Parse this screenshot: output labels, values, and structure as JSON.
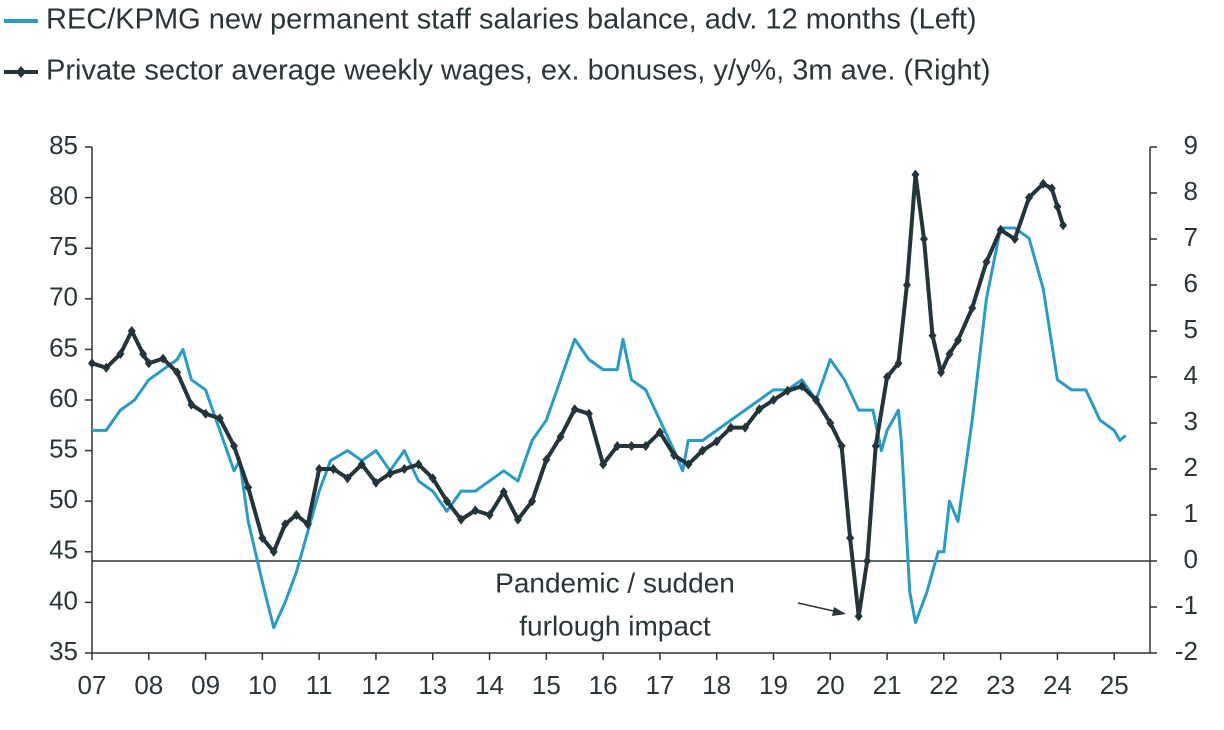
{
  "chart_data": {
    "type": "line",
    "legend_position": "top-left",
    "xlim": [
      2007,
      2025.63
    ],
    "xticks": [
      {
        "value": 2007,
        "label": "07"
      },
      {
        "value": 2008,
        "label": "08"
      },
      {
        "value": 2009,
        "label": "09"
      },
      {
        "value": 2010,
        "label": "10"
      },
      {
        "value": 2011,
        "label": "11"
      },
      {
        "value": 2012,
        "label": "12"
      },
      {
        "value": 2013,
        "label": "13"
      },
      {
        "value": 2014,
        "label": "14"
      },
      {
        "value": 2015,
        "label": "15"
      },
      {
        "value": 2016,
        "label": "16"
      },
      {
        "value": 2017,
        "label": "17"
      },
      {
        "value": 2018,
        "label": "18"
      },
      {
        "value": 2019,
        "label": "19"
      },
      {
        "value": 2020,
        "label": "20"
      },
      {
        "value": 2021,
        "label": "21"
      },
      {
        "value": 2022,
        "label": "22"
      },
      {
        "value": 2023,
        "label": "23"
      },
      {
        "value": 2024,
        "label": "24"
      },
      {
        "value": 2025,
        "label": "25"
      }
    ],
    "ylim": [
      35,
      85
    ],
    "yticks": [
      35,
      40,
      45,
      50,
      55,
      60,
      65,
      70,
      75,
      80,
      85
    ],
    "y2lim": [
      -2,
      9
    ],
    "y2ticks": [
      -2,
      -1,
      0,
      1,
      2,
      3,
      4,
      5,
      6,
      7,
      8,
      9
    ],
    "reference_line": {
      "value": 0,
      "axis": "y2"
    },
    "annotation": [
      "Pandemic / sudden",
      "furlough impact"
    ],
    "series": [
      {
        "name": "REC/KPMG new permanent staff salaries balance, adv. 12 months (Left)",
        "color": "#2a9bc4",
        "axis": "y",
        "markers": false,
        "x": [
          2007.0,
          2007.25,
          2007.5,
          2007.75,
          2008.0,
          2008.25,
          2008.5,
          2008.6,
          2008.75,
          2009.0,
          2009.25,
          2009.5,
          2009.6,
          2009.75,
          2010.0,
          2010.2,
          2010.4,
          2010.6,
          2010.8,
          2011.0,
          2011.2,
          2011.5,
          2011.75,
          2012.0,
          2012.25,
          2012.5,
          2012.75,
          2013.0,
          2013.25,
          2013.5,
          2013.75,
          2014.0,
          2014.25,
          2014.5,
          2014.75,
          2015.0,
          2015.25,
          2015.5,
          2015.75,
          2016.0,
          2016.25,
          2016.35,
          2016.5,
          2016.75,
          2017.0,
          2017.25,
          2017.4,
          2017.5,
          2017.75,
          2018.0,
          2018.25,
          2018.5,
          2018.75,
          2019.0,
          2019.25,
          2019.5,
          2019.75,
          2020.0,
          2020.25,
          2020.5,
          2020.75,
          2020.9,
          2021.0,
          2021.2,
          2021.25,
          2021.4,
          2021.5,
          2021.7,
          2021.9,
          2022.0,
          2022.1,
          2022.25,
          2022.5,
          2022.75,
          2023.0,
          2023.25,
          2023.5,
          2023.75,
          2024.0,
          2024.25,
          2024.5,
          2024.75,
          2025.0,
          2025.1,
          2025.2
        ],
        "values": [
          57,
          57,
          59,
          60,
          62,
          63,
          64,
          65,
          62,
          61,
          57,
          53,
          54,
          48,
          42,
          37.5,
          40,
          43,
          47,
          51,
          54,
          55,
          54,
          55,
          53,
          55,
          52,
          51,
          49,
          51,
          51,
          52,
          53,
          52,
          56,
          58,
          62,
          66,
          64,
          63,
          63,
          66,
          62,
          61,
          58,
          55,
          53,
          56,
          56,
          57,
          58,
          59,
          60,
          61,
          61,
          62,
          60,
          64,
          62,
          59,
          59,
          55,
          57,
          59,
          56,
          41,
          38,
          41,
          45,
          45,
          50,
          48,
          58,
          70,
          77,
          77,
          76,
          71,
          62,
          61,
          61,
          58,
          57,
          56,
          56.5
        ]
      },
      {
        "name": "Private sector average weekly wages, ex. bonuses, y/y%, 3m ave. (Right)",
        "color": "#23343b",
        "axis": "y2",
        "markers": true,
        "x": [
          2007.0,
          2007.25,
          2007.5,
          2007.7,
          2007.9,
          2008.0,
          2008.25,
          2008.5,
          2008.75,
          2009.0,
          2009.25,
          2009.5,
          2009.75,
          2010.0,
          2010.2,
          2010.4,
          2010.6,
          2010.8,
          2011.0,
          2011.25,
          2011.5,
          2011.75,
          2012.0,
          2012.25,
          2012.5,
          2012.75,
          2013.0,
          2013.25,
          2013.5,
          2013.75,
          2014.0,
          2014.25,
          2014.5,
          2014.75,
          2015.0,
          2015.25,
          2015.5,
          2015.75,
          2016.0,
          2016.25,
          2016.5,
          2016.75,
          2017.0,
          2017.25,
          2017.5,
          2017.75,
          2018.0,
          2018.25,
          2018.5,
          2018.75,
          2019.0,
          2019.25,
          2019.5,
          2019.75,
          2020.0,
          2020.2,
          2020.35,
          2020.5,
          2020.65,
          2020.8,
          2021.0,
          2021.2,
          2021.35,
          2021.5,
          2021.65,
          2021.8,
          2021.95,
          2022.1,
          2022.25,
          2022.5,
          2022.75,
          2023.0,
          2023.25,
          2023.5,
          2023.75,
          2023.9,
          2024.0,
          2024.1
        ],
        "values": [
          4.3,
          4.2,
          4.5,
          5.0,
          4.5,
          4.3,
          4.4,
          4.1,
          3.4,
          3.2,
          3.1,
          2.5,
          1.6,
          0.5,
          0.2,
          0.8,
          1.0,
          0.8,
          2.0,
          2.0,
          1.8,
          2.1,
          1.7,
          1.9,
          2.0,
          2.1,
          1.8,
          1.3,
          0.9,
          1.1,
          1.0,
          1.5,
          0.9,
          1.3,
          2.2,
          2.7,
          3.3,
          3.2,
          2.1,
          2.5,
          2.5,
          2.5,
          2.8,
          2.3,
          2.1,
          2.4,
          2.6,
          2.9,
          2.9,
          3.3,
          3.5,
          3.7,
          3.8,
          3.5,
          3.0,
          2.5,
          0.5,
          -1.2,
          0.0,
          2.5,
          4.0,
          4.3,
          6.0,
          8.4,
          7.0,
          4.9,
          4.1,
          4.5,
          4.8,
          5.5,
          6.5,
          7.2,
          7.0,
          7.9,
          8.2,
          8.1,
          7.7,
          7.3
        ]
      }
    ]
  }
}
